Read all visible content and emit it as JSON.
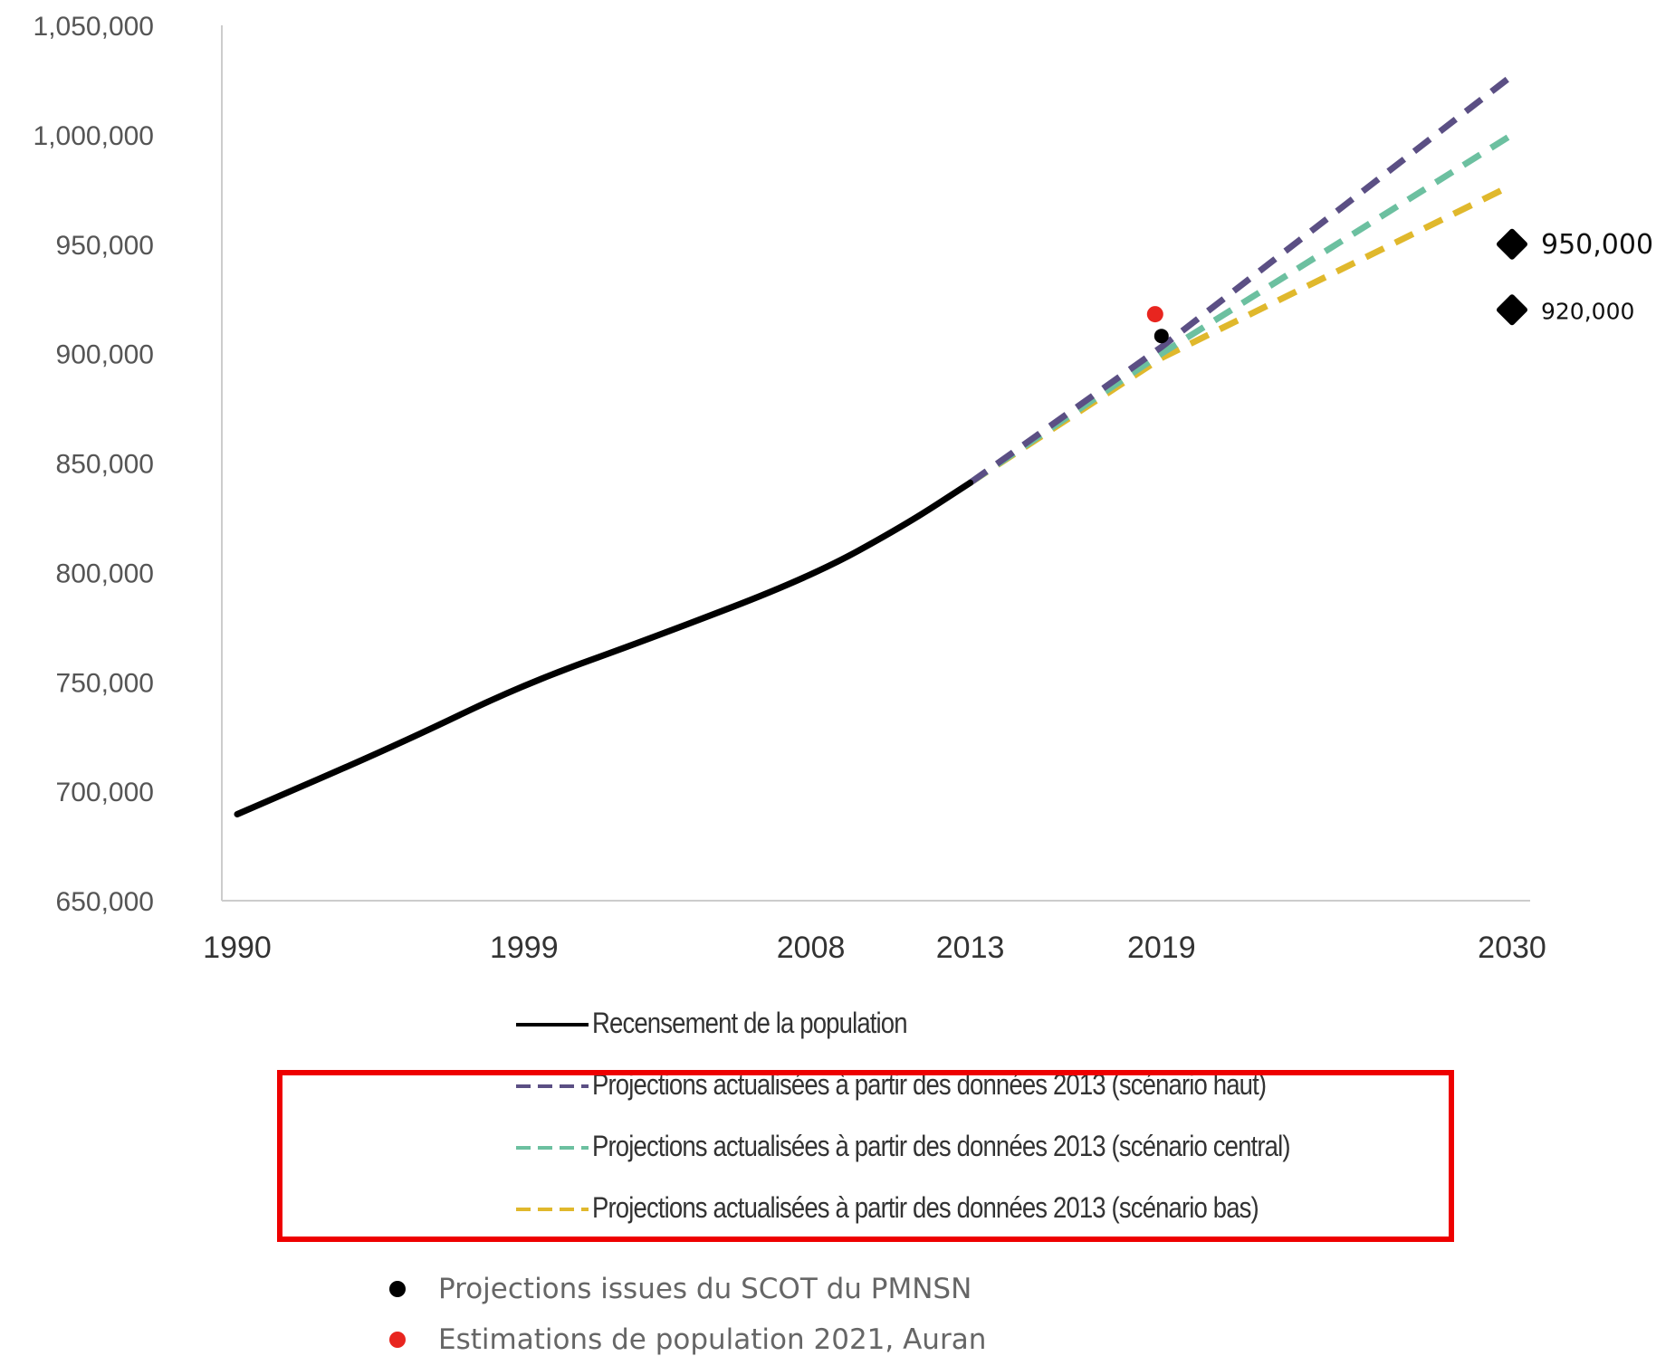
{
  "chart_data": {
    "type": "line",
    "x_categories": [
      "1990",
      "1999",
      "2008",
      "2013",
      "2019",
      "2030"
    ],
    "ylim": [
      650000,
      1050000
    ],
    "y_ticks": [
      "650,000",
      "700,000",
      "750,000",
      "800,000",
      "850,000",
      "900,000",
      "950,000",
      "1,000,000",
      "1,050,000"
    ],
    "series": [
      {
        "name": "Recensement de la population",
        "color": "#000000",
        "style": "solid",
        "points": [
          [
            1990,
            689500
          ],
          [
            1995,
            721000
          ],
          [
            1999,
            749000
          ],
          [
            2003,
            770000
          ],
          [
            2008,
            798000
          ],
          [
            2011,
            822000
          ],
          [
            2013,
            841000
          ]
        ]
      },
      {
        "name": "Projections actualisées à partir des données 2013 (scénario haut)",
        "color": "#5b4f84",
        "style": "dashed",
        "points": [
          [
            2013,
            841000
          ],
          [
            2019,
            903000
          ],
          [
            2030,
            1027000
          ]
        ]
      },
      {
        "name": "Projections actualisées à partir des données 2013 (scénario central)",
        "color": "#6cc0a0",
        "style": "dashed",
        "points": [
          [
            2013,
            841000
          ],
          [
            2019,
            900000
          ],
          [
            2030,
            1000000
          ]
        ]
      },
      {
        "name": "Projections actualisées à partir des données 2013 (scénario bas)",
        "color": "#e0b82c",
        "style": "dashed",
        "points": [
          [
            2013,
            841000
          ],
          [
            2019,
            898000
          ],
          [
            2030,
            977000
          ]
        ]
      }
    ],
    "scot_points": [
      {
        "year": 2019,
        "value": 913000,
        "color": "#000000"
      },
      {
        "year": 2030,
        "value": 950000,
        "label": "950,000",
        "color": "#000000"
      },
      {
        "year": 2030,
        "value": 920000,
        "label": "920,000",
        "color": "#000000"
      }
    ],
    "auran_point": {
      "year": 2019,
      "value": 918000,
      "color": "#e8251f"
    },
    "grid": false
  },
  "legend": {
    "items": [
      {
        "label": "Recensement de la population",
        "color": "#000000",
        "style": "solid"
      },
      {
        "label": "Projections actualisées à partir des données 2013 (scénario haut)",
        "color": "#5b4f84",
        "style": "dashed"
      },
      {
        "label": "Projections actualisées à partir des données 2013 (scénario central)",
        "color": "#6cc0a0",
        "style": "dashed"
      },
      {
        "label": "Projections actualisées à partir des données 2013 (scénario bas)",
        "color": "#e0b82c",
        "style": "dashed"
      }
    ],
    "highlight_color": "#ee0000"
  },
  "notes": [
    {
      "label": "Projections issues du SCOT du PMNSN",
      "color": "#000000"
    },
    {
      "label": "Estimations de population 2021, Auran",
      "color": "#e8251f"
    }
  ]
}
